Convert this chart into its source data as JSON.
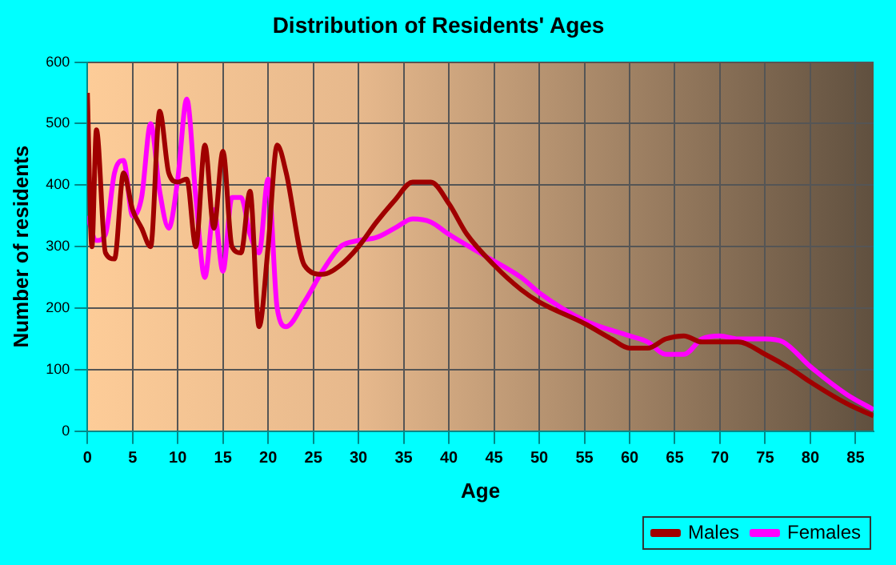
{
  "chart_data": {
    "type": "line",
    "title": "Distribution of Residents' Ages",
    "xlabel": "Age",
    "ylabel": "Number of residents",
    "xlim": [
      0,
      87
    ],
    "xticks": [
      0,
      5,
      10,
      15,
      20,
      25,
      30,
      35,
      40,
      45,
      50,
      55,
      60,
      65,
      70,
      75,
      80,
      85
    ],
    "ylim": [
      0,
      600
    ],
    "yticks": [
      0,
      100,
      200,
      300,
      400,
      500,
      600
    ],
    "grid": true,
    "legend": "bottom right",
    "marker": "none",
    "series": [
      {
        "name": "Males",
        "color": "#a00000",
        "x": [
          0,
          0.5,
          1,
          2,
          3,
          4,
          5,
          6,
          7,
          8,
          9,
          10,
          11,
          12,
          13,
          14,
          15,
          16,
          17,
          18,
          19,
          20,
          21,
          22,
          24,
          26,
          28,
          30,
          32,
          34,
          36,
          38,
          40,
          42,
          45,
          48,
          50,
          55,
          58,
          60,
          62,
          64,
          66,
          68,
          70,
          72,
          75,
          78,
          80,
          84,
          87
        ],
        "values": [
          550,
          300,
          490,
          290,
          280,
          420,
          360,
          330,
          300,
          520,
          420,
          405,
          410,
          300,
          465,
          330,
          455,
          300,
          290,
          390,
          170,
          300,
          465,
          420,
          270,
          255,
          270,
          300,
          340,
          375,
          405,
          405,
          370,
          320,
          270,
          230,
          210,
          175,
          150,
          135,
          135,
          150,
          155,
          145,
          145,
          145,
          125,
          100,
          80,
          45,
          25
        ]
      },
      {
        "name": "Females",
        "color": "#ff00ff",
        "x": [
          0,
          1,
          2,
          3,
          4,
          5,
          6,
          7,
          8,
          9,
          10,
          11,
          12,
          13,
          14,
          15,
          16,
          17,
          18,
          19,
          20,
          21,
          22,
          24,
          26,
          28,
          30,
          32,
          34,
          36,
          38,
          40,
          44,
          48,
          50,
          55,
          60,
          62,
          64,
          66,
          68,
          70,
          72,
          75,
          77,
          80,
          84,
          87
        ],
        "values": [
          350,
          310,
          320,
          420,
          440,
          350,
          380,
          500,
          390,
          330,
          410,
          540,
          380,
          250,
          360,
          260,
          380,
          380,
          320,
          290,
          410,
          200,
          170,
          210,
          260,
          300,
          310,
          315,
          330,
          345,
          340,
          320,
          285,
          250,
          225,
          180,
          155,
          145,
          125,
          125,
          150,
          155,
          150,
          150,
          145,
          105,
          60,
          35
        ]
      }
    ]
  }
}
